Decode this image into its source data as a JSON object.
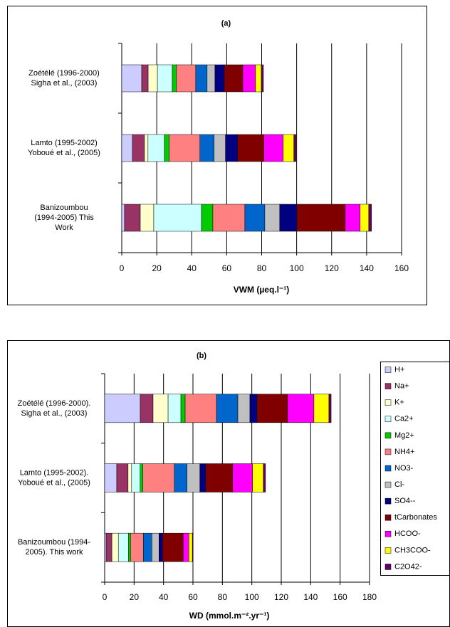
{
  "chart_data": [
    {
      "type": "bar",
      "orientation": "horizontal",
      "stacked": true,
      "title": "(a)",
      "x_label": "VWM (µeq.l⁻¹)",
      "categories": [
        "Zoétélé (1996-2000)\nSigha et al., (2003)",
        "Lamto (1995-2002)\nYoboué et al., (2005)",
        "Banizoumbou\n(1994-2005) This\nWork"
      ],
      "series": [
        {
          "color": "#ccccff",
          "values": [
            11.4,
            6.1,
            1.6
          ]
        },
        {
          "color": "#993366",
          "values": [
            3.7,
            6.9,
            9
          ]
        },
        {
          "color": "#ffffcc",
          "values": [
            5.3,
            2,
            7.7
          ]
        },
        {
          "color": "#ccffff",
          "values": [
            8.5,
            9.4,
            27.3
          ]
        },
        {
          "color": "#00cc00",
          "values": [
            2.4,
            2.8,
            6.5
          ]
        },
        {
          "color": "#ff8080",
          "values": [
            11,
            17.5,
            18.3
          ]
        },
        {
          "color": "#0066cc",
          "values": [
            6.5,
            8.1,
            11.4
          ]
        },
        {
          "color": "#c0c0c0",
          "values": [
            4.5,
            6.5,
            8.5
          ]
        },
        {
          "color": "#000080",
          "values": [
            5.3,
            6.9,
            9.8
          ]
        },
        {
          "color": "#800000",
          "values": [
            10.6,
            15.1,
            27.7
          ]
        },
        {
          "color": "#ff00ff",
          "values": [
            7.3,
            11,
            8.5
          ]
        },
        {
          "color": "#ffff00",
          "values": [
            3.3,
            6.1,
            4.9
          ]
        },
        {
          "color": "#660066",
          "values": [
            1.2,
            1.2,
            1.6
          ]
        }
      ],
      "xlim": [
        0,
        160
      ],
      "xticks": [
        0,
        20,
        40,
        60,
        80,
        100,
        120,
        140,
        160
      ],
      "grid": true
    },
    {
      "type": "bar",
      "orientation": "horizontal",
      "stacked": true,
      "title": "(b)",
      "x_label": "WD (mmol.m⁻².yr⁻¹)",
      "categories": [
        "Zoétélé (1996-2000).\nSigha et al., (2003)",
        "Lamto (1995-2002).\nYoboué et al., (2005)",
        "Banizoumbou (1994-\n2005). This work"
      ],
      "series": [
        {
          "name": "H+",
          "color": "#ccccff",
          "values": [
            24.2,
            8.2,
            1
          ]
        },
        {
          "name": "Na+",
          "color": "#993366",
          "values": [
            8.7,
            7.7,
            3.9
          ]
        },
        {
          "name": "K+",
          "color": "#ffffcc",
          "values": [
            10.2,
            2.4,
            4.4
          ]
        },
        {
          "name": "Ca2+",
          "color": "#ccffff",
          "values": [
            8.7,
            5.8,
            6.8
          ]
        },
        {
          "name": "Mg2+",
          "color": "#00cc00",
          "values": [
            2.9,
            1.9,
            1.5
          ]
        },
        {
          "name": "NH4+",
          "color": "#ff8080",
          "values": [
            21.3,
            21.3,
            8.7
          ]
        },
        {
          "name": "NO3-",
          "color": "#0066cc",
          "values": [
            14.5,
            8.7,
            5.8
          ]
        },
        {
          "name": "Cl-",
          "color": "#c0c0c0",
          "values": [
            8.2,
            8.7,
            4.8
          ]
        },
        {
          "name": "SO4--",
          "color": "#000080",
          "values": [
            4.8,
            3.9,
            2.4
          ]
        },
        {
          "name": "tCarbonates",
          "color": "#800000",
          "values": [
            20.8,
            18.4,
            14
          ]
        },
        {
          "name": "HCOO-",
          "color": "#ff00ff",
          "values": [
            17.9,
            13.5,
            3.9
          ]
        },
        {
          "name": "CH3COO-",
          "color": "#ffff00",
          "values": [
            10.2,
            7.3,
            2.4
          ]
        },
        {
          "name": "C2O42-",
          "color": "#660066",
          "values": [
            1.5,
            1.5,
            0.5
          ]
        }
      ],
      "xlim": [
        0,
        180
      ],
      "xticks": [
        0,
        20,
        40,
        60,
        80,
        100,
        120,
        140,
        160,
        180
      ],
      "grid": true,
      "legend": "right"
    }
  ]
}
